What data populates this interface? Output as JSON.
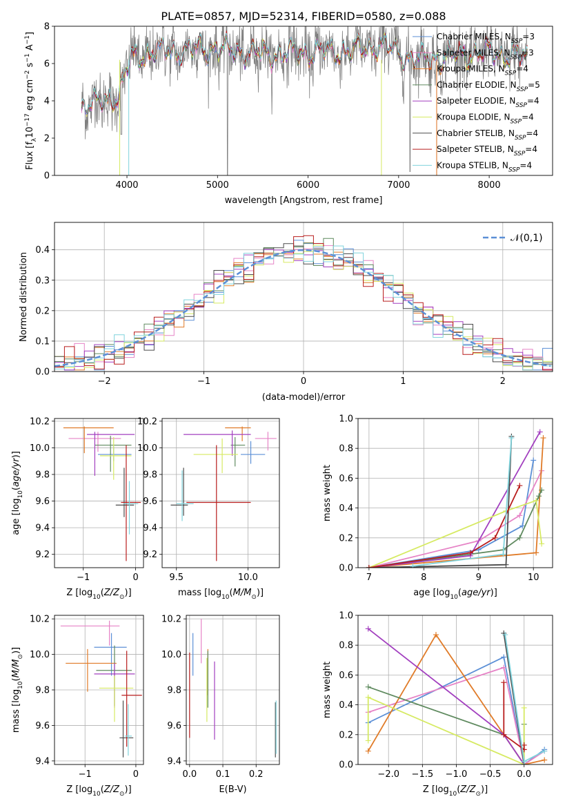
{
  "figure_title": "PLATE=0857, MJD=52314, FIBERID=0580, z=0.088",
  "models": [
    {
      "name": "Chabrier MILES",
      "nssp": "3",
      "color": "#5b8fd6"
    },
    {
      "name": "Salpeter MILES",
      "nssp": "3",
      "color": "#e683c6"
    },
    {
      "name": "Kroupa MILES",
      "nssp": "4",
      "color": "#e07b28"
    },
    {
      "name": "Chabrier ELODIE",
      "nssp": "5",
      "color": "#5f8a5f"
    },
    {
      "name": "Salpeter ELODIE",
      "nssp": "4",
      "color": "#a23fbf"
    },
    {
      "name": "Kroupa ELODIE",
      "nssp": "4",
      "color": "#d6ea62"
    },
    {
      "name": "Chabrier STELIB",
      "nssp": "4",
      "color": "#4a4a4a"
    },
    {
      "name": "Salpeter STELIB",
      "nssp": "4",
      "color": "#b81c1c"
    },
    {
      "name": "Kroupa STELIB",
      "nssp": "4",
      "color": "#7fd3dc"
    }
  ],
  "chart_data": [
    {
      "id": "spectrum",
      "type": "line",
      "xlabel": "wavelength [Angstrom, rest frame]",
      "ylabel": "Flux [f_λ 10^-17 erg cm^-2 s^-1 A^-1]",
      "xlim": [
        3200,
        8700
      ],
      "ylim": [
        0,
        8
      ],
      "xticks": [
        4000,
        5000,
        6000,
        7000,
        8000
      ],
      "yticks": [
        0,
        2,
        4,
        6,
        8
      ],
      "continuum_anchors": {
        "x": [
          3500,
          3700,
          3900,
          4050,
          4300,
          4600,
          5000,
          5500,
          6000,
          6500,
          6800,
          7200,
          7600,
          8000,
          8400,
          8700
        ],
        "y": [
          3.7,
          3.9,
          4.3,
          6.3,
          6.6,
          6.7,
          6.8,
          6.5,
          6.6,
          6.7,
          7.0,
          6.2,
          6.4,
          6.6,
          6.3,
          6.2
        ]
      },
      "data_color": "#808080",
      "legend_position": "top-right"
    },
    {
      "id": "residuals",
      "type": "line",
      "xlabel": "(data-model)/error",
      "ylabel": "Normed distribution",
      "xlim": [
        -2.5,
        2.5
      ],
      "ylim": [
        0,
        0.49
      ],
      "xticks": [
        -2,
        -1,
        0,
        1,
        2
      ],
      "yticks": [
        0.0,
        0.1,
        0.2,
        0.3,
        0.4
      ],
      "grid": true,
      "reference": {
        "name": "𝒩(0,1)",
        "color": "#5b8fd6",
        "mean": 0,
        "sigma": 1
      },
      "bin_width": 0.1,
      "legend_position": "top-right"
    },
    {
      "id": "age_vs_Z",
      "type": "scatter",
      "xlabel": "Z [log10(Z/Z⊙)]",
      "ylabel": "age [log10(age/yr)]",
      "xlim": [
        -1.55,
        0.15
      ],
      "ylim": [
        9.1,
        10.22
      ],
      "xticks": [
        -1,
        0
      ],
      "yticks": [
        9.2,
        9.4,
        9.6,
        9.8,
        10.0,
        10.2
      ],
      "grid": true,
      "points": [
        {
          "x": -0.42,
          "y": 9.95,
          "xl": -0.72,
          "xh": -0.08,
          "yl": 9.9,
          "yh": 10.01
        },
        {
          "x": -0.72,
          "y": 10.07,
          "xl": -1.28,
          "xh": -0.28,
          "yl": 9.97,
          "yh": 10.12
        },
        {
          "x": -0.98,
          "y": 10.15,
          "xl": -1.38,
          "xh": -0.42,
          "yl": 9.96,
          "yh": 10.16
        },
        {
          "x": -0.48,
          "y": 10.02,
          "xl": -0.78,
          "xh": -0.08,
          "yl": 9.82,
          "yh": 10.09
        },
        {
          "x": -0.78,
          "y": 10.1,
          "xl": -0.93,
          "xh": -0.02,
          "yl": 9.79,
          "yh": 10.12
        },
        {
          "x": -0.42,
          "y": 9.94,
          "xl": -0.68,
          "xh": -0.08,
          "yl": 9.76,
          "yh": 10.08
        },
        {
          "x": -0.22,
          "y": 9.57,
          "xl": -0.38,
          "xh": -0.03,
          "yl": 9.48,
          "yh": 9.85
        },
        {
          "x": -0.18,
          "y": 9.59,
          "xl": -0.28,
          "xh": 0.1,
          "yl": 9.15,
          "yh": 10.02
        },
        {
          "x": -0.12,
          "y": 9.58,
          "xl": -0.23,
          "xh": 0.05,
          "yl": 9.35,
          "yh": 9.75
        }
      ]
    },
    {
      "id": "age_vs_mass",
      "type": "scatter",
      "xlabel": "mass [log10(M/M⊙)]",
      "ylabel": "",
      "xlim": [
        9.4,
        10.22
      ],
      "ylim": [
        9.1,
        10.22
      ],
      "xticks": [
        9.5,
        10.0
      ],
      "yticks": [
        9.2,
        9.4,
        9.6,
        9.8,
        10.0,
        10.2
      ],
      "grid": true,
      "points": [
        {
          "x": 10.02,
          "y": 9.95,
          "xl": 9.95,
          "xh": 10.12,
          "yl": 9.88,
          "yh": 10.05
        },
        {
          "x": 10.14,
          "y": 10.07,
          "xl": 10.05,
          "xh": 10.2,
          "yl": 9.98,
          "yh": 10.12
        },
        {
          "x": 9.96,
          "y": 10.15,
          "xl": 9.84,
          "xh": 10.02,
          "yl": 10.05,
          "yh": 10.16
        },
        {
          "x": 9.91,
          "y": 10.02,
          "xl": 9.88,
          "xh": 9.98,
          "yl": 9.86,
          "yh": 10.08
        },
        {
          "x": 9.89,
          "y": 10.1,
          "xl": 9.55,
          "xh": 10.02,
          "yl": 9.94,
          "yh": 10.13
        },
        {
          "x": 9.82,
          "y": 9.95,
          "xl": 9.62,
          "xh": 9.93,
          "yl": 9.81,
          "yh": 10.07
        },
        {
          "x": 9.55,
          "y": 9.57,
          "xl": 9.46,
          "xh": 9.58,
          "yl": 9.49,
          "yh": 9.85
        },
        {
          "x": 9.78,
          "y": 9.59,
          "xl": 9.57,
          "xh": 10.02,
          "yl": 9.15,
          "yh": 10.02
        },
        {
          "x": 9.54,
          "y": 9.58,
          "xl": 9.5,
          "xh": 9.62,
          "yl": 9.45,
          "yh": 9.83
        }
      ]
    },
    {
      "id": "weight_vs_age",
      "type": "line",
      "xlabel": "age [log10(age/yr)]",
      "ylabel": "mass weight",
      "xlim": [
        6.8,
        10.35
      ],
      "ylim": [
        0,
        1.0
      ],
      "xticks": [
        7,
        8,
        9,
        10
      ],
      "yticks": [
        0.0,
        0.2,
        0.4,
        0.6,
        0.8,
        1.0
      ],
      "grid": true,
      "series": [
        {
          "x": [
            7.0,
            9.0,
            9.8,
            10.0
          ],
          "y": [
            0.0,
            0.12,
            0.28,
            0.72
          ]
        },
        {
          "x": [
            7.0,
            9.0,
            9.75,
            10.15
          ],
          "y": [
            0.0,
            0.18,
            0.35,
            0.65
          ]
        },
        {
          "x": [
            7.0,
            10.05,
            10.18
          ],
          "y": [
            0.0,
            0.1,
            0.87
          ]
        },
        {
          "x": [
            7.0,
            9.45,
            9.75,
            10.1,
            10.15
          ],
          "y": [
            0.0,
            0.12,
            0.2,
            0.48,
            0.52
          ]
        },
        {
          "x": [
            7.0,
            8.85,
            10.12
          ],
          "y": [
            0.0,
            0.08,
            0.91
          ]
        },
        {
          "x": [
            7.0,
            9.5,
            10.05,
            10.15
          ],
          "y": [
            0.0,
            0.38,
            0.45,
            0.16
          ]
        },
        {
          "x": [
            7.0,
            9.5,
            9.6
          ],
          "y": [
            0.0,
            0.02,
            0.88
          ]
        },
        {
          "x": [
            7.0,
            8.85,
            9.3,
            9.75
          ],
          "y": [
            0.0,
            0.1,
            0.2,
            0.55
          ]
        },
        {
          "x": [
            7.8,
            9.45,
            9.6
          ],
          "y": [
            0.01,
            0.09,
            0.87
          ]
        }
      ]
    },
    {
      "id": "mass_vs_Z",
      "type": "scatter",
      "xlabel": "Z [log10(Z/Z⊙)]",
      "ylabel": "mass [log10(M/M⊙)]",
      "xlim": [
        -1.6,
        0.15
      ],
      "ylim": [
        9.38,
        10.22
      ],
      "xticks": [
        -1,
        0
      ],
      "yticks": [
        9.4,
        9.6,
        9.8,
        10.0,
        10.2
      ],
      "grid": true,
      "points": [
        {
          "x": -0.48,
          "y": 10.04,
          "xl": -0.82,
          "xh": -0.18,
          "yl": 9.88,
          "yh": 10.12
        },
        {
          "x": -0.52,
          "y": 10.16,
          "xl": -1.48,
          "xh": -0.32,
          "yl": 10.05,
          "yh": 10.19
        },
        {
          "x": -0.95,
          "y": 9.95,
          "xl": -1.38,
          "xh": -0.38,
          "yl": 9.79,
          "yh": 10.03
        },
        {
          "x": -0.42,
          "y": 9.91,
          "xl": -0.78,
          "xh": -0.08,
          "yl": 9.71,
          "yh": 10.05
        },
        {
          "x": -0.42,
          "y": 9.89,
          "xl": -0.82,
          "xh": -0.02,
          "yl": 9.7,
          "yh": 9.95
        },
        {
          "x": -0.42,
          "y": 9.81,
          "xl": -0.72,
          "xh": -0.05,
          "yl": 9.62,
          "yh": 9.88
        },
        {
          "x": -0.25,
          "y": 9.53,
          "xl": -0.32,
          "xh": -0.05,
          "yl": 9.42,
          "yh": 9.74
        },
        {
          "x": -0.18,
          "y": 9.77,
          "xl": -0.28,
          "xh": 0.12,
          "yl": 9.48,
          "yh": 10.02
        },
        {
          "x": -0.15,
          "y": 9.54,
          "xl": -0.22,
          "xh": -0.08,
          "yl": 9.43,
          "yh": 9.72
        }
      ]
    },
    {
      "id": "mass_vs_ebv",
      "type": "scatter",
      "xlabel": "E(B-V)",
      "ylabel": "",
      "xlim": [
        -0.01,
        0.27
      ],
      "ylim": [
        9.38,
        10.22
      ],
      "xticks": [
        0.0,
        0.1,
        0.2
      ],
      "yticks": [
        9.4,
        9.6,
        9.8,
        10.0,
        10.2
      ],
      "grid": true,
      "points": [
        {
          "x": 0.01,
          "y": 10.0,
          "xl": 0.01,
          "xh": 0.01,
          "yl": 9.88,
          "yh": 10.12
        },
        {
          "x": 0.035,
          "y": 10.06,
          "xl": 0.035,
          "xh": 0.035,
          "yl": 9.95,
          "yh": 10.2
        },
        {
          "x": 0.055,
          "y": 9.9,
          "xl": 0.055,
          "xh": 0.055,
          "yl": 9.77,
          "yh": 10.03
        },
        {
          "x": 0.055,
          "y": 9.85,
          "xl": 0.055,
          "xh": 0.055,
          "yl": 9.7,
          "yh": 10.02
        },
        {
          "x": 0.075,
          "y": 9.72,
          "xl": 0.075,
          "xh": 0.075,
          "yl": 9.52,
          "yh": 9.96
        },
        {
          "x": 0.052,
          "y": 9.82,
          "xl": 0.052,
          "xh": 0.052,
          "yl": 9.62,
          "yh": 9.98
        },
        {
          "x": 0.258,
          "y": 9.57,
          "xl": 0.258,
          "xh": 0.258,
          "yl": 9.42,
          "yh": 9.73
        },
        {
          "x": 0.0,
          "y": 9.78,
          "xl": 0.0,
          "xh": 0.0,
          "yl": 9.53,
          "yh": 10.01
        },
        {
          "x": 0.26,
          "y": 9.58,
          "xl": 0.26,
          "xh": 0.26,
          "yl": 9.44,
          "yh": 9.74
        }
      ]
    },
    {
      "id": "weight_vs_Z",
      "type": "line",
      "xlabel": "Z [log10(Z/Z⊙)]",
      "ylabel": "mass weight",
      "xlim": [
        -2.45,
        0.42
      ],
      "ylim": [
        0,
        1.0
      ],
      "xticks": [
        -2.0,
        -1.5,
        -1.0,
        -0.5,
        0.0
      ],
      "yticks": [
        0.0,
        0.2,
        0.4,
        0.6,
        0.8,
        1.0
      ],
      "grid": true,
      "series": [
        {
          "x": [
            -2.3,
            -0.3,
            0.0,
            0.3
          ],
          "y": [
            0.28,
            0.72,
            0.0,
            0.1
          ]
        },
        {
          "x": [
            -2.3,
            -0.3,
            0.0,
            0.3
          ],
          "y": [
            0.35,
            0.65,
            0.0,
            0.09
          ]
        },
        {
          "x": [
            -2.3,
            -1.3,
            0.0,
            0.3
          ],
          "y": [
            0.09,
            0.87,
            0.0,
            0.03
          ]
        },
        {
          "x": [
            -2.3,
            -0.3,
            0.0,
            0.0
          ],
          "y": [
            0.52,
            0.2,
            0.0,
            0.27
          ]
        },
        {
          "x": [
            -2.3,
            -0.3,
            0.0
          ],
          "y": [
            0.91,
            0.2,
            0.0
          ]
        },
        {
          "x": [
            -2.3,
            -2.3,
            0.0,
            0.0
          ],
          "y": [
            0.16,
            0.45,
            0.0,
            0.38
          ]
        },
        {
          "x": [
            -0.3,
            0.0
          ],
          "y": [
            0.88,
            0.0
          ]
        },
        {
          "x": [
            -0.3,
            -0.3,
            0.0,
            0.0
          ],
          "y": [
            0.55,
            0.2,
            0.1,
            0.13
          ]
        },
        {
          "x": [
            -0.28,
            0.0,
            0.3
          ],
          "y": [
            0.87,
            0.02,
            0.09
          ]
        }
      ]
    }
  ]
}
